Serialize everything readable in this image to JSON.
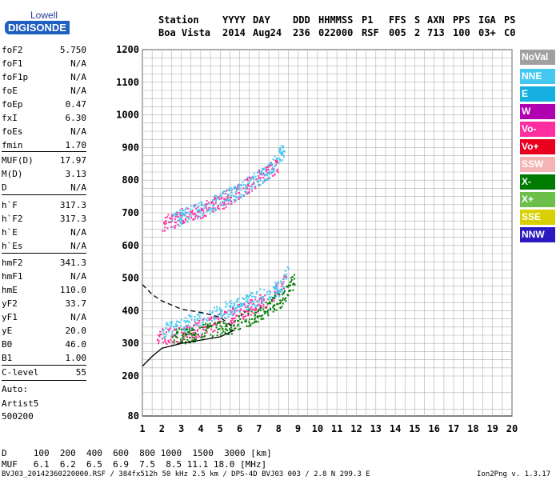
{
  "logo": {
    "line1": "Lowell",
    "line2": "DIGISONDE"
  },
  "header": {
    "cols": [
      {
        "h": "Station",
        "v": "Boa Vista"
      },
      {
        "h": "YYYY",
        "v": "2014"
      },
      {
        "h": "DAY",
        "v": "Aug24"
      },
      {
        "h": "DDD",
        "v": "236"
      },
      {
        "h": "HHMMSS",
        "v": "022000"
      },
      {
        "h": "P1",
        "v": "RSF"
      },
      {
        "h": "FFS",
        "v": "005"
      },
      {
        "h": "S",
        "v": "2"
      },
      {
        "h": "AXN",
        "v": "713"
      },
      {
        "h": "PPS",
        "v": "100"
      },
      {
        "h": "IGA",
        "v": "03+"
      },
      {
        "h": "PS",
        "v": "C0"
      }
    ]
  },
  "params": [
    {
      "n": "foF2",
      "v": "5.750"
    },
    {
      "n": "foF1",
      "v": "N/A"
    },
    {
      "n": "foF1p",
      "v": "N/A"
    },
    {
      "n": "foE",
      "v": "N/A"
    },
    {
      "n": "foEp",
      "v": "0.47"
    },
    {
      "n": "fxI",
      "v": "6.30"
    },
    {
      "n": "foEs",
      "v": "N/A"
    },
    {
      "n": "fmin",
      "v": "1.70"
    },
    {
      "n": "MUF(D)",
      "v": "17.97"
    },
    {
      "n": "M(D)",
      "v": "3.13"
    },
    {
      "n": "D",
      "v": "N/A"
    },
    {
      "n": "h`F",
      "v": "317.3"
    },
    {
      "n": "h`F2",
      "v": "317.3"
    },
    {
      "n": "h`E",
      "v": "N/A"
    },
    {
      "n": "h`Es",
      "v": "N/A"
    },
    {
      "n": "hmF2",
      "v": "341.3"
    },
    {
      "n": "hmF1",
      "v": "N/A"
    },
    {
      "n": "hmE",
      "v": "110.0"
    },
    {
      "n": "yF2",
      "v": "33.7"
    },
    {
      "n": "yF1",
      "v": "N/A"
    },
    {
      "n": "yE",
      "v": "20.0"
    },
    {
      "n": "B0",
      "v": "46.0"
    },
    {
      "n": "B1",
      "v": "1.00"
    },
    {
      "n": "C-level",
      "v": "55"
    }
  ],
  "auto": {
    "l1": "Auto:",
    "l2": "Artist5",
    "l3": "500200"
  },
  "legend": [
    {
      "label": "NoVal",
      "color": "#a0a0a0"
    },
    {
      "label": "NNE",
      "color": "#44c8f0"
    },
    {
      "label": "E",
      "color": "#16b0e0"
    },
    {
      "label": "W",
      "color": "#b000b0"
    },
    {
      "label": "Vo-",
      "color": "#ff2ea0"
    },
    {
      "label": "Vo+",
      "color": "#e8001e"
    },
    {
      "label": "SSW",
      "color": "#f5b4b4"
    },
    {
      "label": "X-",
      "color": "#007a00"
    },
    {
      "label": "X+",
      "color": "#6cbf4a"
    },
    {
      "label": "SSE",
      "color": "#d8d000"
    },
    {
      "label": "NNW",
      "color": "#2a1ac0"
    }
  ],
  "footer": {
    "d_row": "D     100  200  400  600  800 1000  1500  3000 [km]",
    "muf_row": "MUF   6.1  6.2  6.5  6.9  7.5  8.5 11.1 18.0 [MHz]",
    "file": "BVJ03_20142360220000.RSF / 384fx512h 50 kHz 2.5 km / DPS-4D BVJ03 003 / 2.8 N 299.3 E",
    "version": "Ion2Png v. 1.3.17"
  },
  "chart_data": {
    "type": "scatter",
    "title": "",
    "xlabel": "",
    "ylabel": "",
    "xlim": [
      1,
      20
    ],
    "ylim": [
      80,
      1200
    ],
    "xticks": [
      1,
      2,
      3,
      4,
      5,
      6,
      7,
      8,
      9,
      10,
      11,
      12,
      13,
      14,
      15,
      16,
      17,
      18,
      19,
      20
    ],
    "yticks": [
      80,
      200,
      300,
      400,
      500,
      600,
      700,
      800,
      900,
      1000,
      1100,
      1200
    ],
    "grid": true,
    "series": [
      {
        "name": "F2 trace (O)",
        "color": "#ff2ea0",
        "x": [
          1.7,
          2.5,
          3.5,
          4.5,
          5.5,
          6.5,
          7.5,
          8.0,
          8.4
        ],
        "y": [
          320,
          325,
          340,
          360,
          385,
          410,
          440,
          470,
          510
        ]
      },
      {
        "name": "F2 trace (E)",
        "color": "#44c8f0",
        "x": [
          2.0,
          3.0,
          4.0,
          5.0,
          6.0,
          7.0,
          8.0,
          8.5
        ],
        "y": [
          340,
          360,
          375,
          400,
          420,
          445,
          470,
          520
        ]
      },
      {
        "name": "F2 trace (X)",
        "color": "#007a00",
        "x": [
          2.5,
          4.0,
          5.5,
          7.0,
          8.2,
          8.8
        ],
        "y": [
          320,
          335,
          355,
          395,
          440,
          500
        ]
      },
      {
        "name": "Multihop (O)",
        "color": "#ff2ea0",
        "x": [
          2.0,
          3.0,
          4.0,
          5.0,
          6.0,
          7.0,
          8.0
        ],
        "y": [
          665,
          690,
          710,
          735,
          770,
          810,
          850
        ]
      },
      {
        "name": "Multihop (E)",
        "color": "#44c8f0",
        "x": [
          2.5,
          3.5,
          4.5,
          5.5,
          6.5,
          7.5,
          8.3
        ],
        "y": [
          680,
          700,
          725,
          755,
          790,
          830,
          900
        ]
      },
      {
        "name": "Profile (solid)",
        "color": "#000000",
        "x": [
          1.0,
          1.5,
          2.0,
          3.0,
          4.0,
          5.0,
          5.75
        ],
        "y": [
          230,
          260,
          285,
          300,
          310,
          320,
          341
        ]
      },
      {
        "name": "Profile (dashed)",
        "color": "#000000",
        "x": [
          1.0,
          1.5,
          2.0,
          3.0,
          4.0,
          5.0,
          5.75
        ],
        "y": [
          480,
          450,
          430,
          405,
          395,
          380,
          345
        ]
      }
    ]
  }
}
